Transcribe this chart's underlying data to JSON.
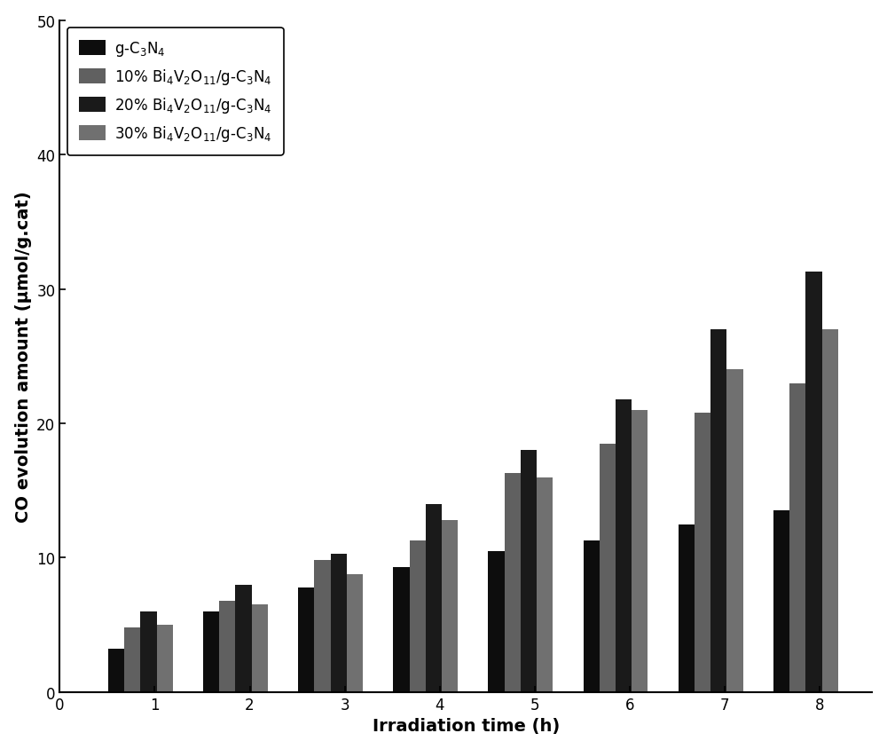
{
  "title": "",
  "xlabel": "Irradiation time (h)",
  "ylabel": "CO evolution amount (μmol/g.cat)",
  "ylim": [
    0,
    50
  ],
  "yticks": [
    0,
    10,
    20,
    30,
    40,
    50
  ],
  "xticks": [
    0,
    1,
    2,
    3,
    4,
    5,
    6,
    7,
    8
  ],
  "series": {
    "g_C3N4": {
      "label": "g-C$_3$N$_4$",
      "color": "#0d0d0d",
      "values": [
        3.2,
        6.0,
        7.8,
        9.3,
        10.5,
        11.3,
        12.5,
        13.5
      ]
    },
    "10pct": {
      "label": "10% Bi$_4$V$_2$O$_{11}$/g-C$_3$N$_4$",
      "color": "#606060",
      "values": [
        4.8,
        6.8,
        9.8,
        11.3,
        16.3,
        18.5,
        20.8,
        23.0
      ]
    },
    "20pct": {
      "label": "20% Bi$_4$V$_2$O$_{11}$/g-C$_3$N$_4$",
      "color": "#1a1a1a",
      "values": [
        6.0,
        8.0,
        10.3,
        14.0,
        18.0,
        21.8,
        27.0,
        31.3
      ]
    },
    "30pct": {
      "label": "30% Bi$_4$V$_2$O$_{11}$/g-C$_3$N$_4$",
      "color": "#707070",
      "values": [
        5.0,
        6.5,
        8.8,
        12.8,
        16.0,
        21.0,
        24.0,
        27.0
      ]
    }
  },
  "bar_width": 0.17,
  "group_centers": [
    0.85,
    1.85,
    2.85,
    3.85,
    4.85,
    5.85,
    6.85,
    7.85
  ],
  "xlim_left": 0,
  "xlim_right": 8.55,
  "legend_fontsize": 12,
  "axis_label_fontsize": 14,
  "tick_fontsize": 12,
  "background_color": "#ffffff",
  "figsize": [
    10.0,
    8.45
  ]
}
